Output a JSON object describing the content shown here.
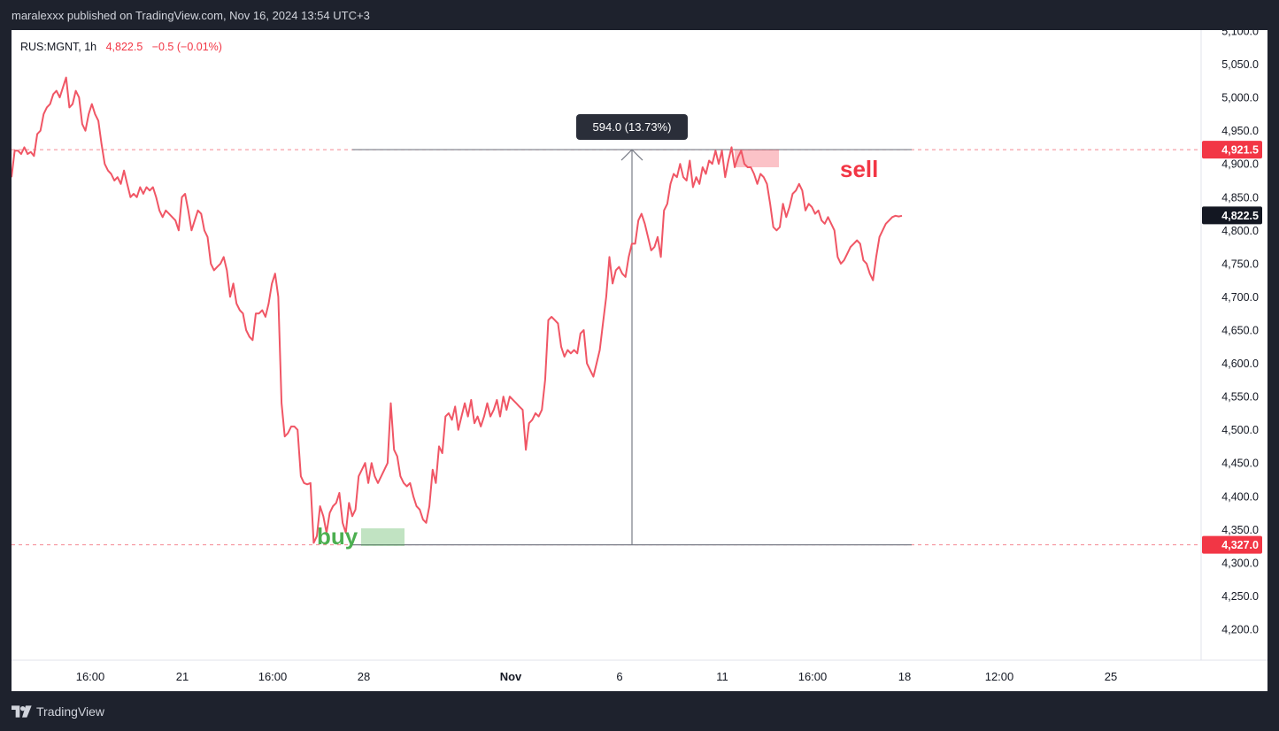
{
  "header": {
    "published_text": "maralexxx published on TradingView.com, Nov 16, 2024 13:54 UTC+3"
  },
  "footer": {
    "brand": "TradingView",
    "brand_icon": "tradingview-logo-icon"
  },
  "legend": {
    "symbol": "RUS:MGNT, 1h",
    "price": "4,822.5",
    "change": "−0.5 (−0.01%)"
  },
  "colors": {
    "line": "#f05665",
    "buy": "#4caf50",
    "sell": "#f23645",
    "frame": "#1e222d"
  },
  "annotations": {
    "buy_label": "buy",
    "sell_label": "sell",
    "measure_label": "594.0 (13.73%)"
  },
  "chart_data": {
    "type": "line",
    "title": "",
    "xlabel": "",
    "ylabel": "",
    "ylim": [
      4155,
      5105
    ],
    "x_ticks": [
      "16:00",
      "21",
      "16:00",
      "28",
      "Nov",
      "6",
      "11",
      "16:00",
      "18",
      "12:00",
      "25"
    ],
    "y_ticks": [
      "4,200.0",
      "4,250.0",
      "4,300.0",
      "4,350.0",
      "4,400.0",
      "4,450.0",
      "4,500.0",
      "4,550.0",
      "4,600.0",
      "4,650.0",
      "4,700.0",
      "4,750.0",
      "4,800.0",
      "4,850.0",
      "4,900.0",
      "4,950.0",
      "5,000.0",
      "5,050.0",
      "5,100.0"
    ],
    "price_labels": [
      {
        "label": "4,921.5",
        "value": 4921.5,
        "style": "level"
      },
      {
        "label": "4,822.5",
        "value": 4822.5,
        "style": "last"
      },
      {
        "label": "4,327.0",
        "value": 4327.0,
        "style": "level"
      }
    ],
    "series": [
      {
        "values": [
          4880,
          4920,
          4920,
          4915,
          4925,
          4915,
          4918,
          4912,
          4945,
          4950,
          4975,
          4985,
          4990,
          5005,
          5010,
          5000,
          5015,
          5030,
          4985,
          4990,
          5010,
          5000,
          4960,
          4950,
          4975,
          4990,
          4975,
          4965,
          4930,
          4900,
          4890,
          4885,
          4875,
          4880,
          4870,
          4890,
          4870,
          4850,
          4855,
          4850,
          4865,
          4855,
          4865,
          4860,
          4865,
          4850,
          4830,
          4820,
          4830,
          4825,
          4820,
          4815,
          4800,
          4850,
          4855,
          4830,
          4800,
          4815,
          4830,
          4825,
          4800,
          4790,
          4750,
          4740,
          4745,
          4750,
          4760,
          4740,
          4700,
          4720,
          4690,
          4680,
          4675,
          4650,
          4640,
          4635,
          4675,
          4675,
          4680,
          4670,
          4690,
          4720,
          4735,
          4700,
          4540,
          4490,
          4495,
          4505,
          4505,
          4500,
          4430,
          4420,
          4418,
          4420,
          4330,
          4340,
          4385,
          4370,
          4345,
          4375,
          4385,
          4390,
          4405,
          4360,
          4345,
          4390,
          4370,
          4380,
          4430,
          4440,
          4450,
          4420,
          4450,
          4430,
          4420,
          4430,
          4440,
          4450,
          4540,
          4470,
          4460,
          4430,
          4420,
          4415,
          4420,
          4400,
          4385,
          4380,
          4365,
          4360,
          4385,
          4440,
          4420,
          4475,
          4465,
          4520,
          4525,
          4515,
          4535,
          4500,
          4520,
          4540,
          4520,
          4545,
          4510,
          4520,
          4505,
          4520,
          4540,
          4520,
          4530,
          4545,
          4520,
          4550,
          4530,
          4550,
          4545,
          4540,
          4535,
          4530,
          4470,
          4510,
          4515,
          4525,
          4520,
          4530,
          4575,
          4665,
          4670,
          4665,
          4660,
          4625,
          4610,
          4620,
          4615,
          4620,
          4615,
          4645,
          4650,
          4600,
          4590,
          4580,
          4600,
          4620,
          4660,
          4700,
          4760,
          4720,
          4740,
          4745,
          4735,
          4730,
          4760,
          4780,
          4780,
          4815,
          4825,
          4810,
          4790,
          4770,
          4775,
          4790,
          4760,
          4830,
          4840,
          4870,
          4885,
          4880,
          4900,
          4880,
          4875,
          4905,
          4865,
          4880,
          4870,
          4895,
          4885,
          4905,
          4900,
          4920,
          4900,
          4920,
          4880,
          4905,
          4925,
          4895,
          4910,
          4920,
          4900,
          4895,
          4895,
          4885,
          4870,
          4885,
          4880,
          4870,
          4840,
          4805,
          4800,
          4805,
          4840,
          4820,
          4835,
          4855,
          4860,
          4870,
          4860,
          4830,
          4840,
          4835,
          4825,
          4830,
          4815,
          4810,
          4820,
          4810,
          4800,
          4760,
          4750,
          4755,
          4765,
          4775,
          4780,
          4785,
          4780,
          4755,
          4750,
          4735,
          4725,
          4760,
          4790,
          4800,
          4810,
          4815,
          4820,
          4822,
          4821,
          4822
        ]
      }
    ]
  }
}
